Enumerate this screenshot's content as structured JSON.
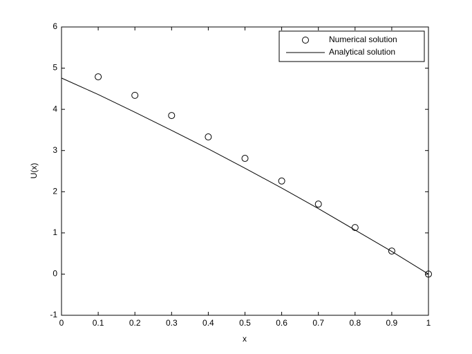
{
  "chart_data": {
    "type": "line",
    "xlabel": "x",
    "ylabel": "U(x)",
    "x": [
      0,
      0.1,
      0.2,
      0.3,
      0.4,
      0.5,
      0.6,
      0.7,
      0.8,
      0.9,
      1
    ],
    "series": [
      {
        "name": "Numerical solution",
        "color": "#000000",
        "mode": "markers",
        "x": [
          0.1,
          0.2,
          0.3,
          0.4,
          0.5,
          0.6,
          0.7,
          0.8,
          0.9,
          1
        ],
        "values": [
          4.79,
          4.34,
          3.85,
          3.33,
          2.81,
          2.26,
          1.7,
          1.13,
          0.56,
          0
        ]
      },
      {
        "name": "Analytical solution",
        "color": "#000000",
        "mode": "lines",
        "x": [
          0,
          0.1,
          0.2,
          0.3,
          0.4,
          0.5,
          0.6,
          0.7,
          0.8,
          0.9,
          1
        ],
        "values": [
          4.76,
          4.36,
          3.93,
          3.49,
          3.04,
          2.57,
          2.09,
          1.59,
          1.07,
          0.55,
          0
        ]
      }
    ],
    "xlim": [
      0,
      1
    ],
    "xticks": [
      0,
      0.1,
      0.2,
      0.3,
      0.4,
      0.5,
      0.6,
      0.7,
      0.8,
      0.9,
      1
    ],
    "ylim": [
      -1,
      6
    ],
    "yticks": [
      -1,
      0,
      1,
      2,
      3,
      4,
      5,
      6
    ],
    "grid": false,
    "legend": "northeast"
  }
}
